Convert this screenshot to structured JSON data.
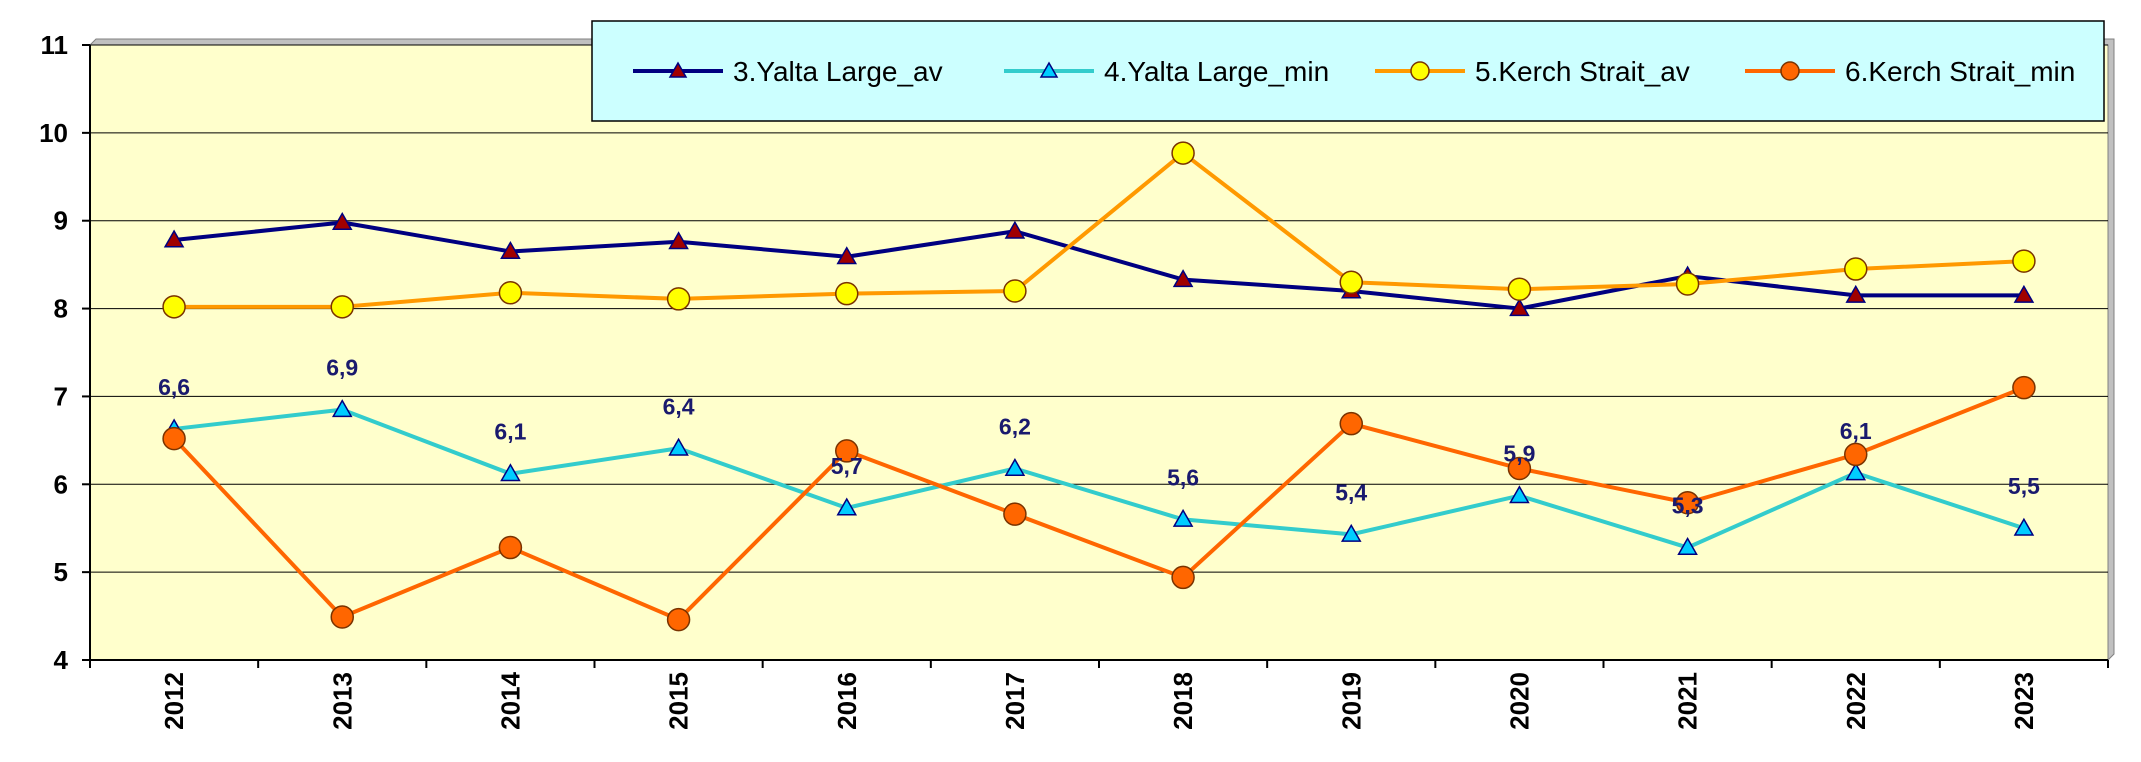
{
  "chart_data": {
    "type": "line",
    "categories": [
      "2012",
      "2013",
      "2014",
      "2015",
      "2016",
      "2017",
      "2018",
      "2019",
      "2020",
      "2021",
      "2022",
      "2023"
    ],
    "ylim": [
      4,
      11
    ],
    "yticks": [
      "4",
      "5",
      "6",
      "7",
      "8",
      "9",
      "10",
      "11"
    ],
    "grid": true,
    "legend_position": "top-right",
    "plot_background": "#ffffcc",
    "legend_background": "#ccffff",
    "series": [
      {
        "name": "3.Yalta Large_av",
        "color": "#000080",
        "marker": "triangle",
        "marker_fill": "#a00000",
        "values": [
          8.78,
          8.98,
          8.65,
          8.76,
          8.59,
          8.88,
          8.33,
          8.2,
          8.0,
          8.37,
          8.15,
          8.15
        ]
      },
      {
        "name": "4.Yalta Large_min",
        "color": "#33cccc",
        "marker": "triangle",
        "marker_fill": "#00ccff",
        "values": [
          6.63,
          6.85,
          6.12,
          6.41,
          5.73,
          6.18,
          5.6,
          5.43,
          5.87,
          5.28,
          6.13,
          5.5
        ],
        "labels": [
          "6,6",
          "6,9",
          "6,1",
          "6,4",
          "5,7",
          "6,2",
          "5,6",
          "5,4",
          "5,9",
          "5,3",
          "6,1",
          "5,5"
        ]
      },
      {
        "name": "5.Kerch Strait_av",
        "color": "#ff9900",
        "marker": "circle",
        "marker_fill": "#ffff00",
        "values": [
          8.02,
          8.02,
          8.18,
          8.11,
          8.17,
          8.2,
          9.77,
          8.3,
          8.22,
          8.28,
          8.45,
          8.54
        ]
      },
      {
        "name": "6.Kerch Strait_min",
        "color": "#ff6600",
        "marker": "circle",
        "marker_fill": "#ff6600",
        "values": [
          6.52,
          4.49,
          5.28,
          4.46,
          6.38,
          5.66,
          4.94,
          6.69,
          6.18,
          5.79,
          6.34,
          7.1
        ]
      }
    ]
  }
}
